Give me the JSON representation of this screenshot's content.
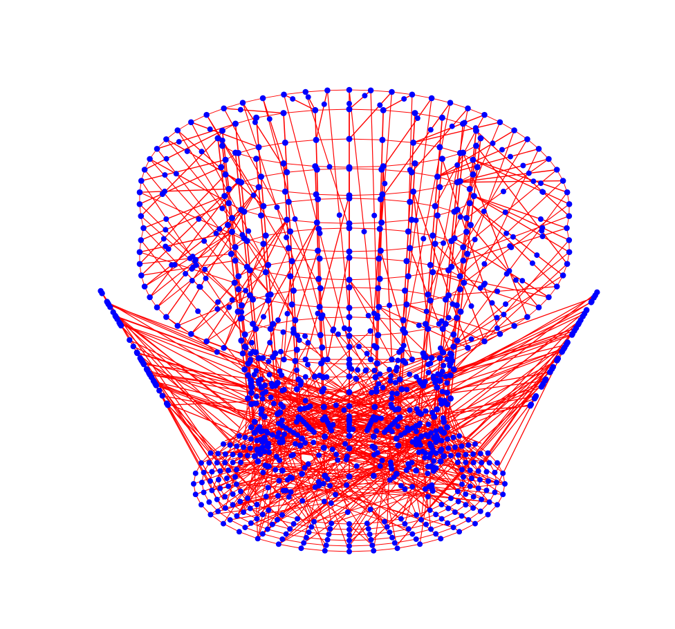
{
  "figure": {
    "kind": "3d-wireframe-graph",
    "background": "#ffffff",
    "node_color": "#0000ff",
    "edge_color": "#ff0000",
    "structure": {
      "inner_cylinder": {
        "spokes": 24,
        "rings": 12
      },
      "outer_fan": {
        "spokes": 72
      },
      "bottom_rings": {
        "rings": 6,
        "nodes_per_ring": 40
      }
    }
  }
}
